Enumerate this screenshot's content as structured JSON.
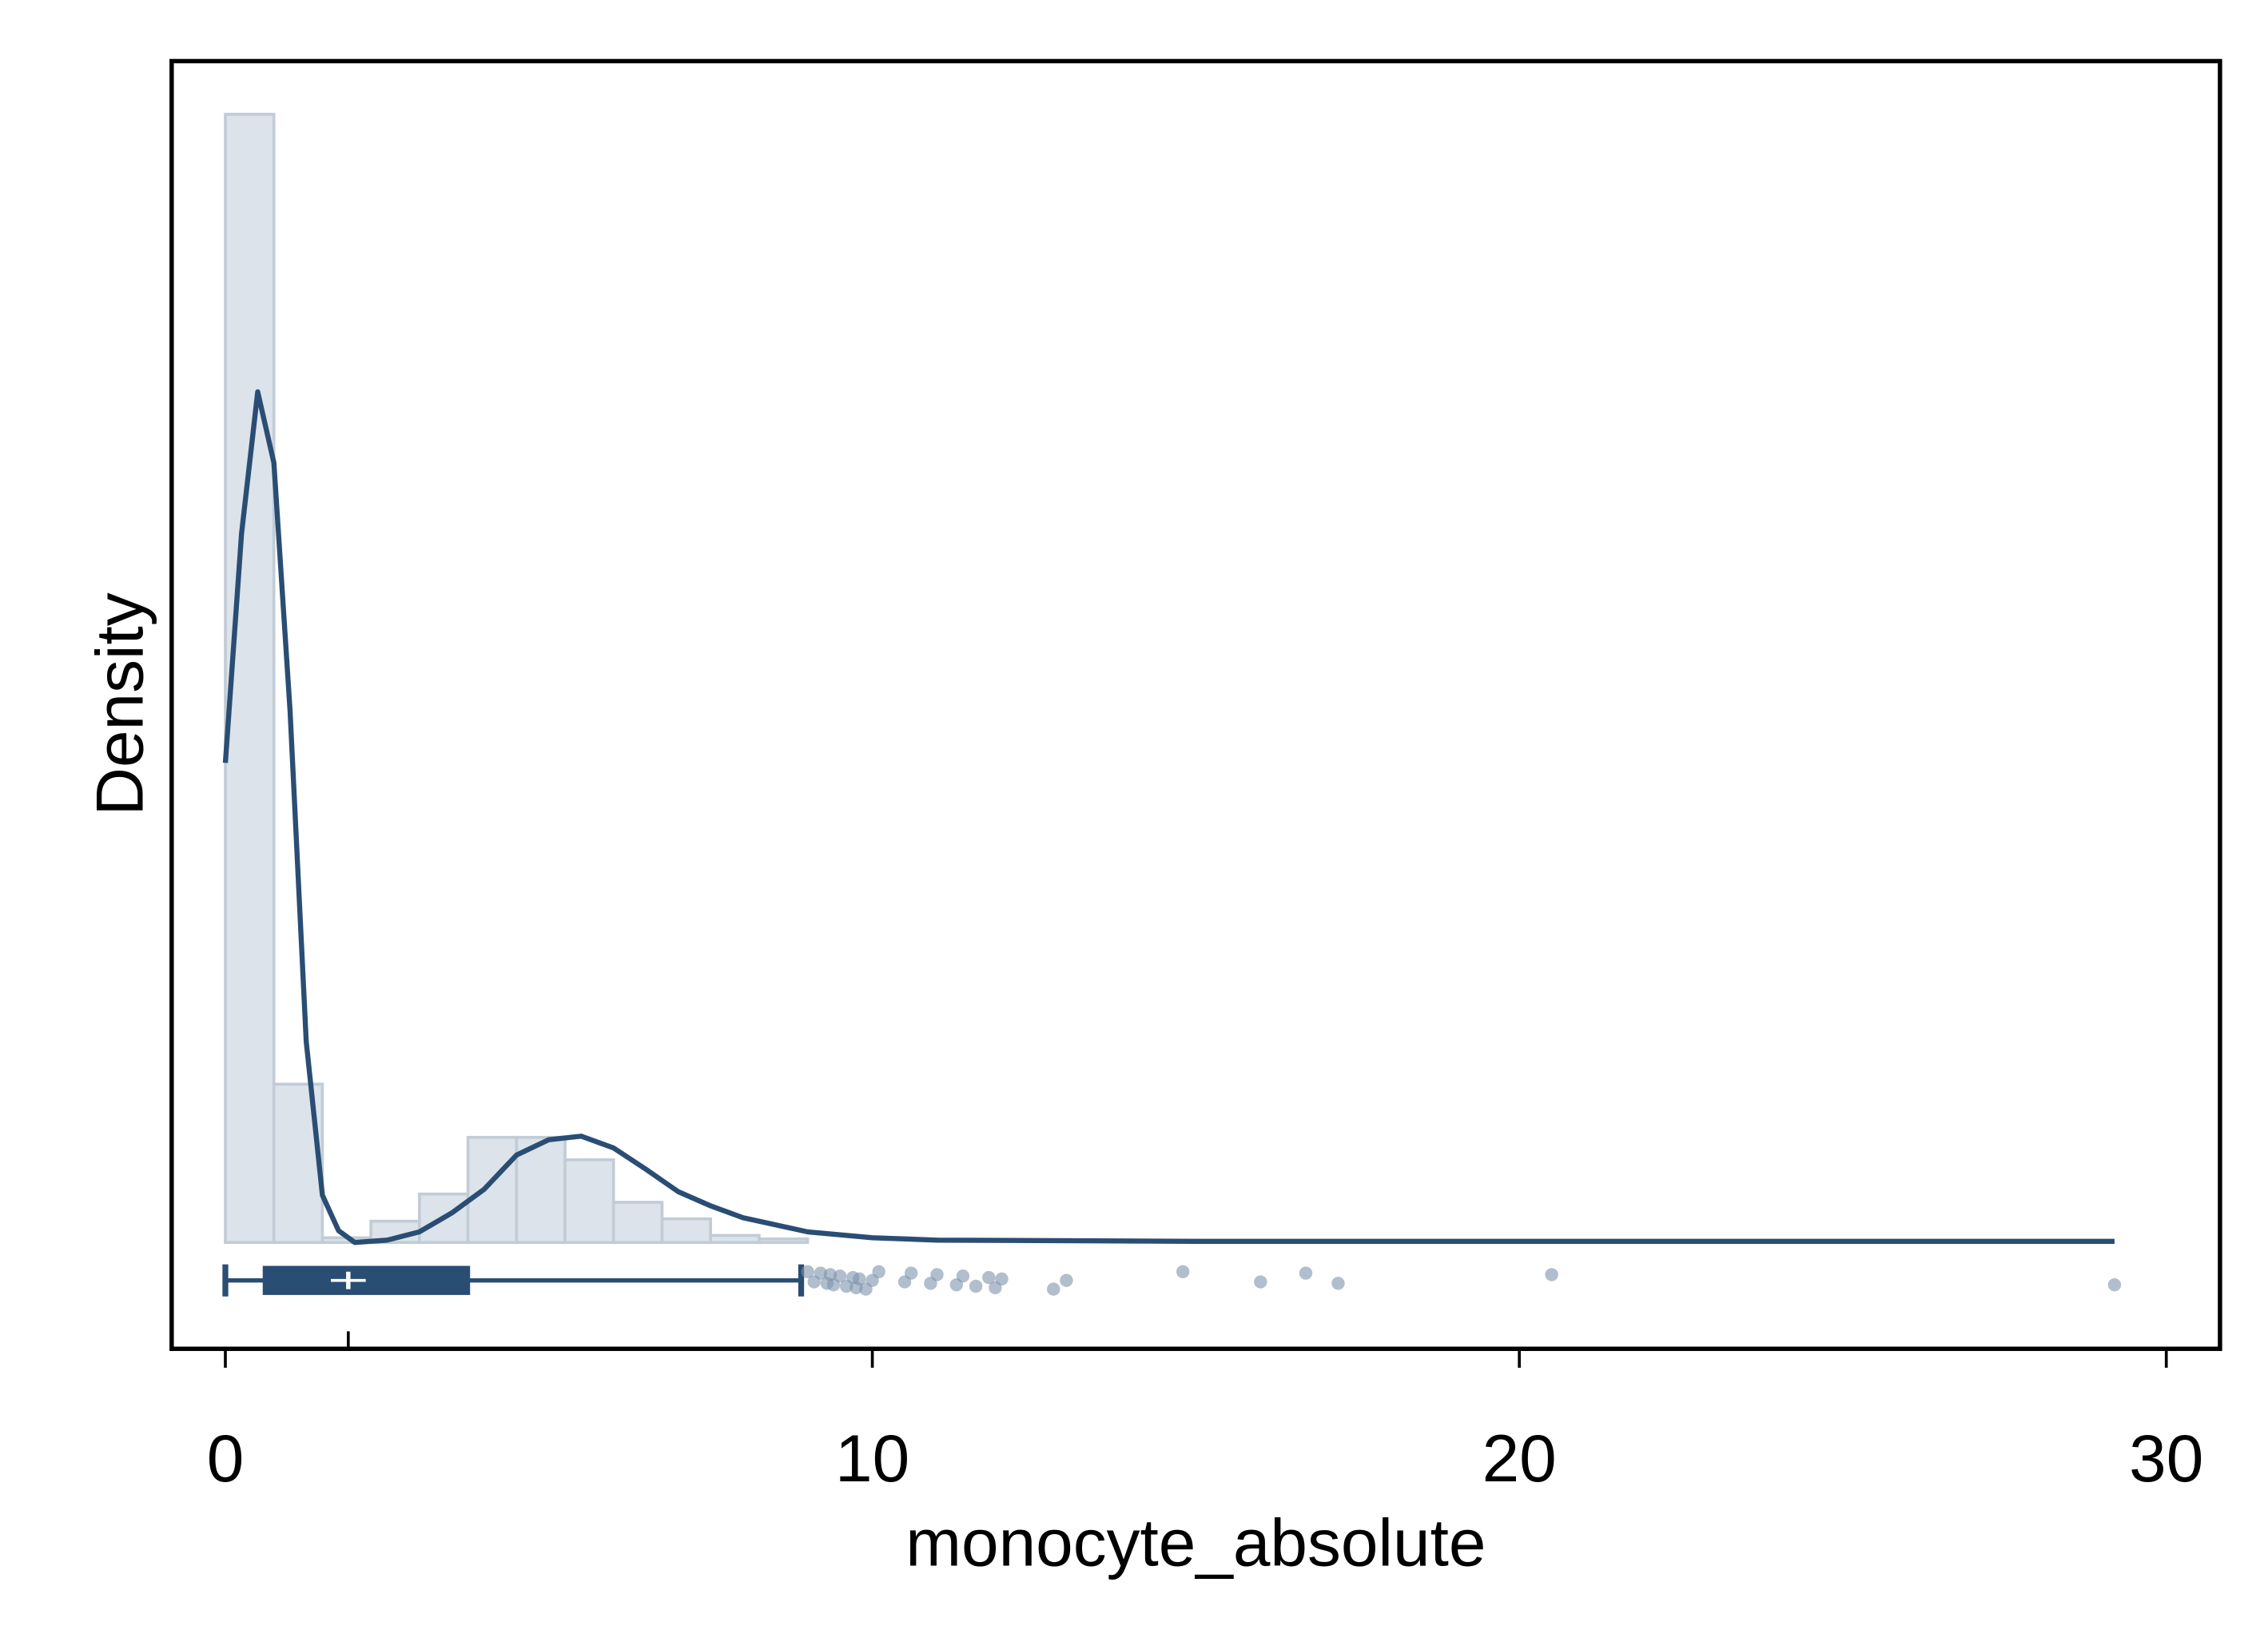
{
  "chart_data": {
    "type": "histogram",
    "x_label": "monocyte_absolute",
    "y_label": "Density",
    "bins": [
      0,
      0.75,
      1.5,
      2.25,
      3.0,
      3.75,
      4.5,
      5.25,
      6.0,
      6.75,
      7.5,
      8.25,
      9.0
    ],
    "values": [
      0.955,
      0.134,
      0.004,
      0.018,
      0.041,
      0.089,
      0.089,
      0.07,
      0.034,
      0.02,
      0.006,
      0.003
    ],
    "color": "#dce3ea",
    "density": {
      "color": "#2a4d74",
      "x": [
        0,
        0.25,
        0.5,
        0.75,
        1.0,
        1.25,
        1.5,
        1.75,
        2.0,
        2.5,
        3.0,
        3.5,
        4.0,
        4.5,
        5.0,
        5.5,
        6.0,
        6.5,
        7.0,
        7.5,
        8.0,
        9.0,
        10,
        11,
        15,
        20,
        29.2
      ],
      "y": [
        0.406,
        0.6,
        0.72,
        0.66,
        0.45,
        0.17,
        0.04,
        0.01,
        0.0,
        0.002,
        0.009,
        0.025,
        0.045,
        0.074,
        0.087,
        0.09,
        0.08,
        0.062,
        0.043,
        0.031,
        0.021,
        0.009,
        0.004,
        0.002,
        0.001,
        0.001,
        0.001
      ]
    },
    "box": {
      "whisker_low": 0,
      "q1": 0.6,
      "median": 1.9,
      "q3": 3.76,
      "whisker_high": 8.9
    },
    "outliers": [
      9.0,
      9.1,
      9.2,
      9.3,
      9.35,
      9.4,
      9.5,
      9.6,
      9.7,
      9.75,
      9.8,
      9.9,
      10.0,
      10.1,
      10.5,
      10.6,
      10.9,
      11.0,
      11.3,
      11.4,
      11.6,
      11.8,
      11.9,
      12.0,
      12.8,
      13.0,
      14.8,
      16.0,
      16.7,
      17.2,
      20.5,
      29.2
    ],
    "xlim": [
      -0.83,
      30.83
    ],
    "ylim": [
      -0.09,
      1.0
    ],
    "xticks": [
      0,
      10,
      20,
      30
    ]
  }
}
